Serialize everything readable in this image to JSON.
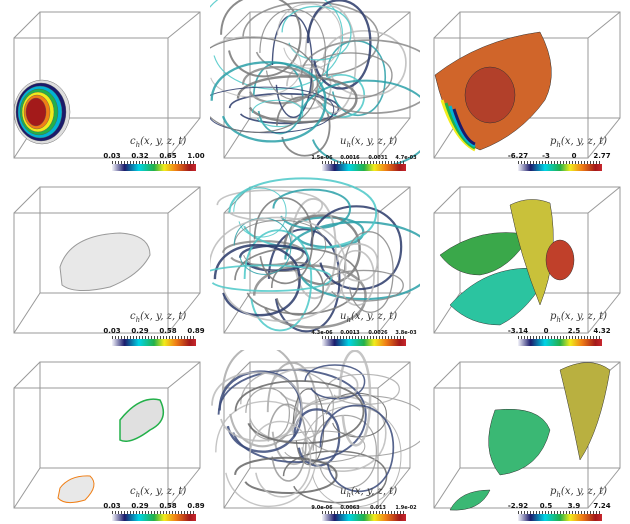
{
  "panels": [
    {
      "kind": "concentration",
      "label": {
        "sym": "c",
        "sub": "h",
        "args": "(x, y, z, t)"
      },
      "ticks": [
        "0.03",
        "0.32",
        "0.65",
        "1.00"
      ]
    },
    {
      "kind": "velocity",
      "label": {
        "sym": "u",
        "sub": "h",
        "args": "(x, y, z, t)"
      },
      "ticks": [
        "1.5e-06",
        "0.0016",
        "0.0031",
        "4.7e-03"
      ]
    },
    {
      "kind": "pressure",
      "label": {
        "sym": "p",
        "sub": "h",
        "args": "(x, y, z, t)"
      },
      "ticks": [
        "-6.27",
        "-3",
        "0",
        "2.77"
      ]
    },
    {
      "kind": "concentration",
      "label": {
        "sym": "c",
        "sub": "h",
        "args": "(x, y, z, t)"
      },
      "ticks": [
        "0.03",
        "0.29",
        "0.58",
        "0.89"
      ]
    },
    {
      "kind": "velocity",
      "label": {
        "sym": "u",
        "sub": "h",
        "args": "(x, y, z, t)"
      },
      "ticks": [
        "4.3e-06",
        "0.0013",
        "0.0026",
        "3.8e-03"
      ]
    },
    {
      "kind": "pressure",
      "label": {
        "sym": "p",
        "sub": "h",
        "args": "(x, y, z, t)"
      },
      "ticks": [
        "-3.14",
        "0",
        "2.5",
        "4.32"
      ]
    },
    {
      "kind": "concentration",
      "label": {
        "sym": "c",
        "sub": "h",
        "args": "(x, y, z, t)"
      },
      "ticks": [
        "0.03",
        "0.29",
        "0.58",
        "0.89"
      ]
    },
    {
      "kind": "velocity",
      "label": {
        "sym": "u",
        "sub": "h",
        "args": "(x, y, z, t)"
      },
      "ticks": [
        "9.0e-06",
        "0.0063",
        "0.013",
        "1.9e-02"
      ]
    },
    {
      "kind": "pressure",
      "label": {
        "sym": "p",
        "sub": "h",
        "args": "(x, y, z, t)"
      },
      "ticks": [
        "-2.92",
        "0.5",
        "3.9",
        "7.24"
      ]
    }
  ],
  "colormap": [
    "#f4f4fb",
    "#1b1b6b",
    "#00d4e6",
    "#23b04a",
    "#f1ec1c",
    "#f07f16",
    "#a31a1a"
  ]
}
